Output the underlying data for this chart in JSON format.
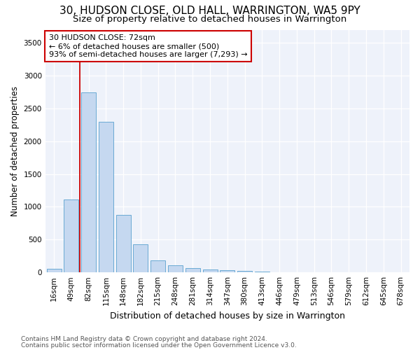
{
  "title": "30, HUDSON CLOSE, OLD HALL, WARRINGTON, WA5 9PY",
  "subtitle": "Size of property relative to detached houses in Warrington",
  "xlabel": "Distribution of detached houses by size in Warrington",
  "ylabel": "Number of detached properties",
  "footnote1": "Contains HM Land Registry data © Crown copyright and database right 2024.",
  "footnote2": "Contains public sector information licensed under the Open Government Licence v3.0.",
  "categories": [
    "16sqm",
    "49sqm",
    "82sqm",
    "115sqm",
    "148sqm",
    "182sqm",
    "215sqm",
    "248sqm",
    "281sqm",
    "314sqm",
    "347sqm",
    "380sqm",
    "413sqm",
    "446sqm",
    "479sqm",
    "513sqm",
    "546sqm",
    "579sqm",
    "612sqm",
    "645sqm",
    "678sqm"
  ],
  "values": [
    50,
    1110,
    2750,
    2300,
    880,
    430,
    180,
    105,
    70,
    48,
    35,
    20,
    12,
    5,
    2,
    1,
    0,
    0,
    0,
    0,
    0
  ],
  "bar_color": "#c5d8f0",
  "bar_edge_color": "#6aaad4",
  "highlight_color": "#cc0000",
  "vline_x": 1.5,
  "annotation_text": "30 HUDSON CLOSE: 72sqm\n← 6% of detached houses are smaller (500)\n93% of semi-detached houses are larger (7,293) →",
  "annotation_box_color": "#ffffff",
  "annotation_box_edge": "#cc0000",
  "ylim": [
    0,
    3700
  ],
  "yticks": [
    0,
    500,
    1000,
    1500,
    2000,
    2500,
    3000,
    3500
  ],
  "bg_color": "#ffffff",
  "plot_bg_color": "#eef2fa",
  "title_fontsize": 11,
  "subtitle_fontsize": 9.5,
  "xlabel_fontsize": 9,
  "ylabel_fontsize": 8.5,
  "tick_fontsize": 7.5,
  "annotation_fontsize": 8,
  "footnote_fontsize": 6.5
}
